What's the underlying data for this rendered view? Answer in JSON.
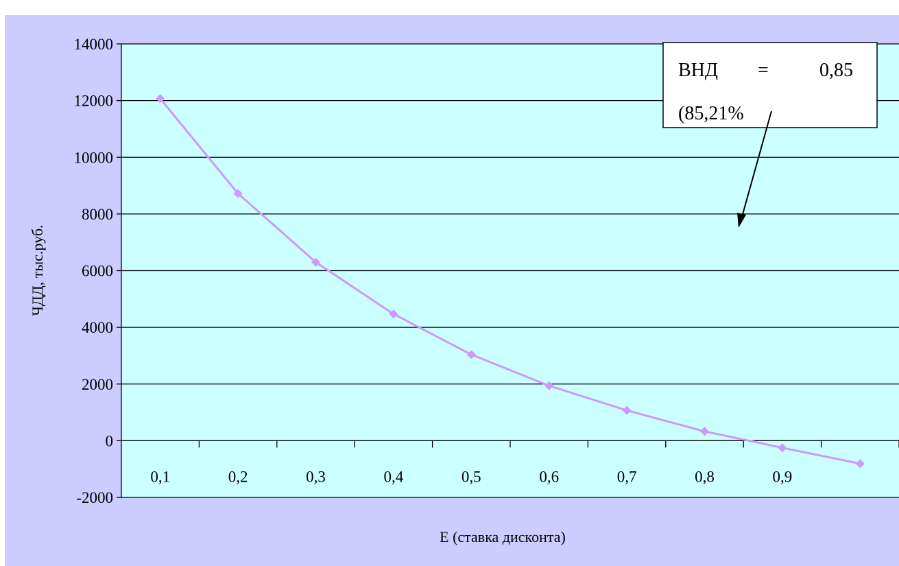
{
  "chart_data": {
    "type": "line",
    "title": "",
    "xlabel": "Е (ставка дисконта)",
    "ylabel": "ЧДД, тыс.руб.",
    "ylim": [
      -2000,
      14000
    ],
    "yticks": [
      -2000,
      0,
      2000,
      4000,
      6000,
      8000,
      10000,
      12000,
      14000
    ],
    "yticks_labels": [
      "-2000",
      "0",
      "2000",
      "4000",
      "6000",
      "8000",
      "10000",
      "12000",
      "14000"
    ],
    "categories": [
      "0,1",
      "0,2",
      "0,3",
      "0,4",
      "0,5",
      "0,6",
      "0,7",
      "0,8",
      "0,9",
      ""
    ],
    "grid": true,
    "legend": "none",
    "series": [
      {
        "values": [
          12070,
          8720,
          6300,
          4470,
          3040,
          1940,
          1070,
          330,
          -250,
          -810
        ]
      }
    ],
    "annotation": {
      "line1": [
        "ВНД",
        "=",
        "0,85"
      ],
      "line2": "(85,21%"
    },
    "colors": {
      "outer_background": "#ccccff",
      "plot_background": "#ccffff",
      "series_line": "#cc99ff",
      "grid": "#000000"
    }
  }
}
